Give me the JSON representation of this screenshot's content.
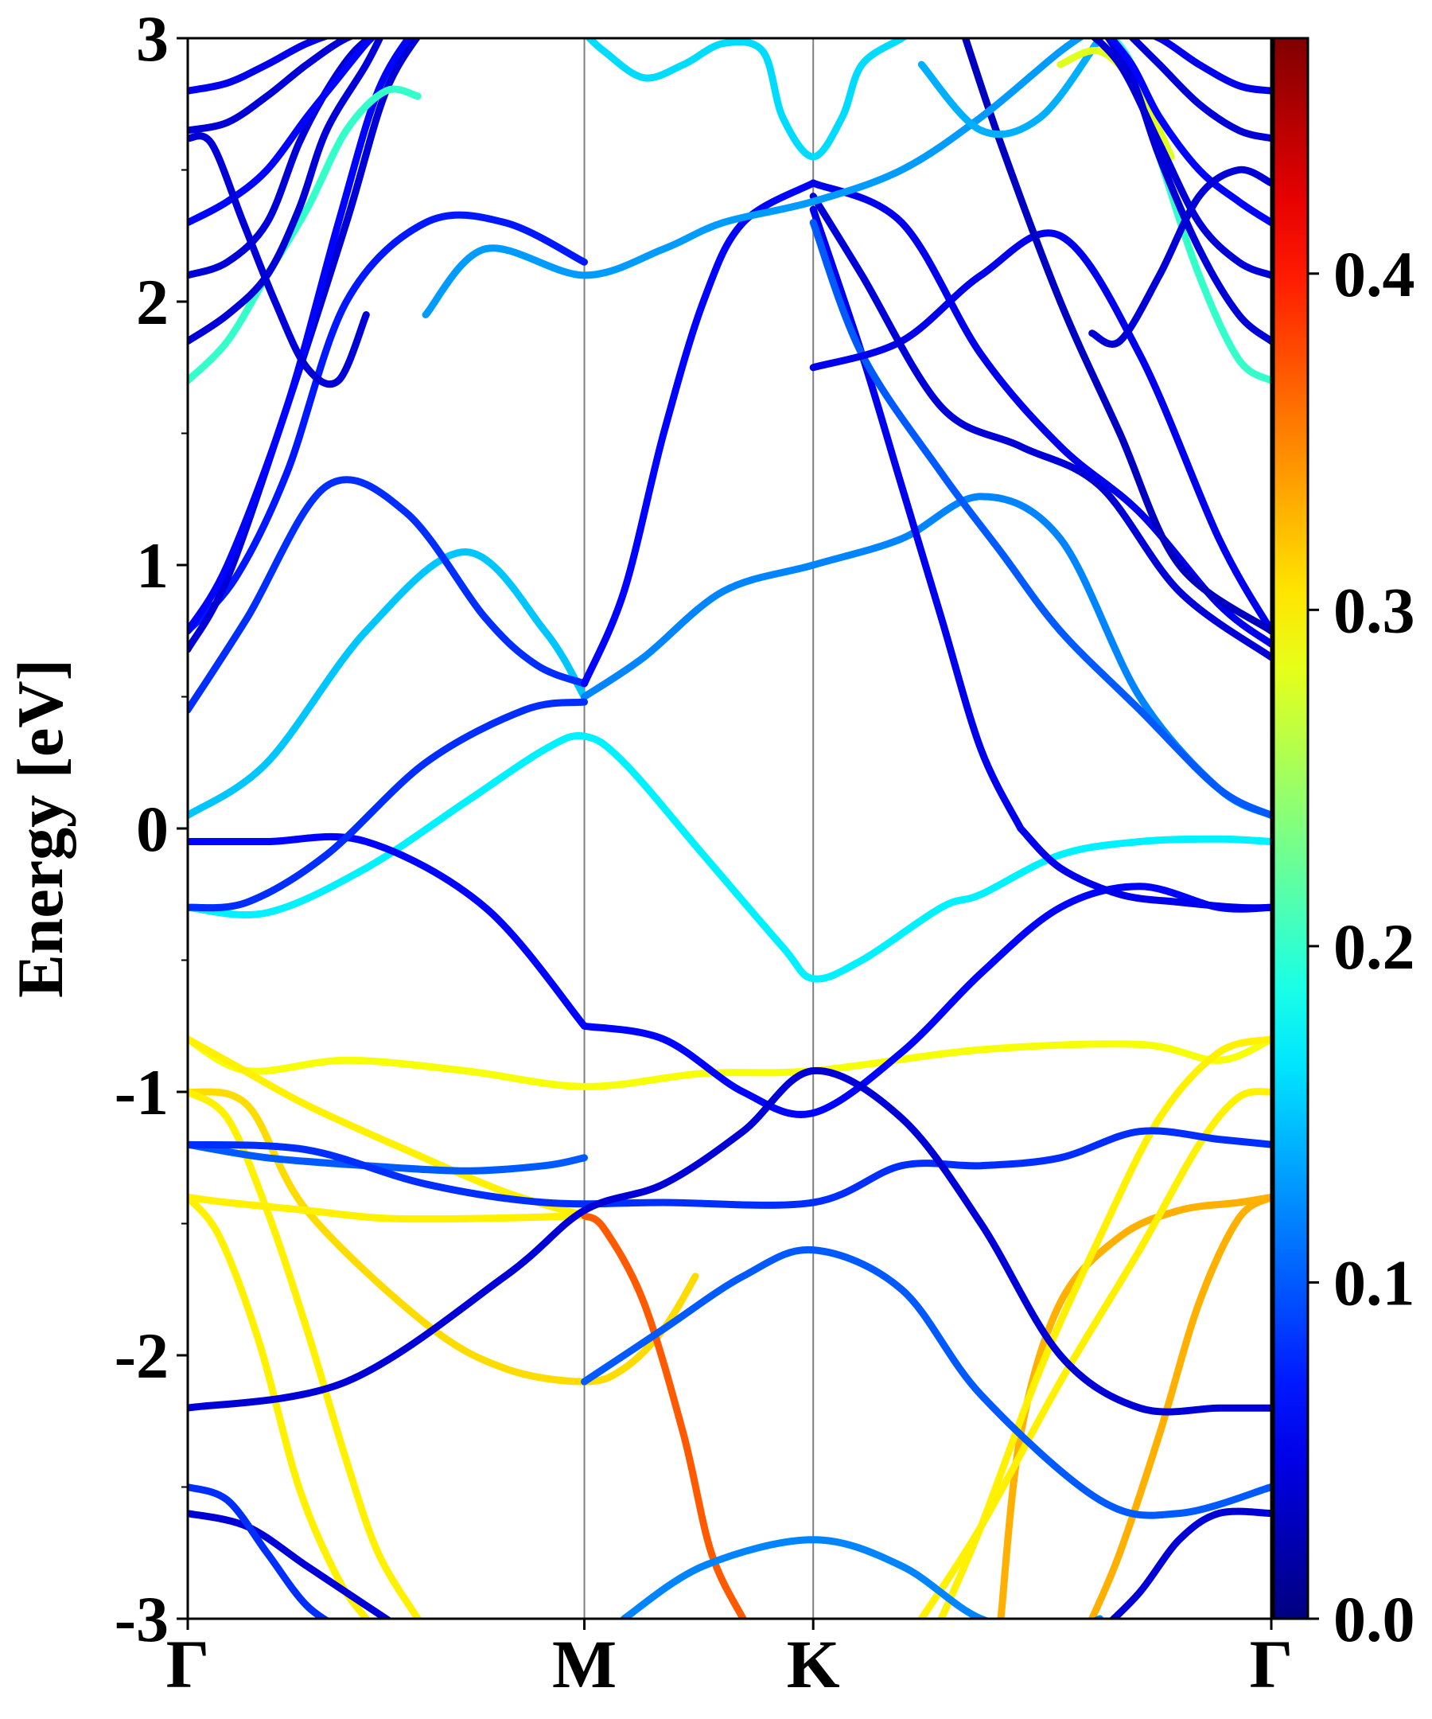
{
  "chart_data": {
    "type": "line",
    "title": "",
    "xlabel": "",
    "ylabel": "Energy [eV]",
    "ylim": [
      -3,
      3
    ],
    "yticks": [
      -3,
      -2,
      -1,
      0,
      1,
      2,
      3
    ],
    "yticklabels": [
      "-3",
      "-2",
      "-1",
      "0",
      "1",
      "2",
      "3"
    ],
    "x_high_symmetry": [
      {
        "label": "Γ",
        "pos": 0.0
      },
      {
        "label": "M",
        "pos": 1.0
      },
      {
        "label": "K",
        "pos": 1.577
      },
      {
        "label": "Γ",
        "pos": 2.732
      }
    ],
    "xlim": [
      0,
      2.732
    ],
    "grid": false,
    "colormap": "jet",
    "colorbar": {
      "range": [
        0,
        0.47
      ],
      "ticks": [
        0.0,
        0.1,
        0.2,
        0.3,
        0.4
      ],
      "ticklabels": [
        "0.0",
        "0.1",
        "0.2",
        "0.3",
        "0.4"
      ]
    },
    "series": [
      {
        "weight": 0.29,
        "x": [
          0,
          0.15,
          0.4,
          0.7,
          1.0,
          1.3,
          1.577,
          2.0,
          2.4,
          2.6,
          2.732
        ],
        "y": [
          -0.8,
          -0.92,
          -0.88,
          -0.92,
          -0.98,
          -0.93,
          -0.92,
          -0.84,
          -0.82,
          -0.88,
          -0.8
        ]
      },
      {
        "weight": 0.3,
        "x": [
          0,
          0.12,
          0.3,
          0.55,
          0.8,
          1.0
        ],
        "y": [
          -0.8,
          -0.9,
          -1.05,
          -1.22,
          -1.38,
          -1.47
        ]
      },
      {
        "weight": 0.31,
        "x": [
          0,
          0.15,
          0.3,
          0.6,
          0.8,
          1.0,
          1.1,
          1.2,
          1.28
        ],
        "y": [
          -1.0,
          -1.05,
          -1.45,
          -1.88,
          -2.05,
          -2.1,
          -2.05,
          -1.9,
          -1.7
        ]
      },
      {
        "weight": 0.3,
        "x": [
          0,
          0.1,
          0.3,
          0.5,
          0.75,
          1.0
        ],
        "y": [
          -1.4,
          -1.42,
          -1.45,
          -1.48,
          -1.48,
          -1.47
        ]
      },
      {
        "weight": 0.37,
        "x": [
          1.0,
          1.05,
          1.15,
          1.25,
          1.32,
          1.4
        ],
        "y": [
          -1.47,
          -1.52,
          -1.8,
          -2.3,
          -2.75,
          -3.0
        ]
      },
      {
        "weight": 0.3,
        "x": [
          0,
          0.08,
          0.18,
          0.28,
          0.38,
          0.45
        ],
        "y": [
          -1.4,
          -1.55,
          -1.95,
          -2.5,
          -2.85,
          -3.0
        ]
      },
      {
        "weight": 0.3,
        "x": [
          0,
          0.1,
          0.2,
          0.3,
          0.4,
          0.48,
          0.58
        ],
        "y": [
          -1.0,
          -1.1,
          -1.45,
          -1.9,
          -2.4,
          -2.75,
          -3.0
        ]
      },
      {
        "weight": 0.33,
        "x": [
          2.732,
          2.65,
          2.5,
          2.35,
          2.2,
          2.1,
          2.05
        ],
        "y": [
          -1.4,
          -1.42,
          -1.45,
          -1.55,
          -1.8,
          -2.3,
          -3.0
        ]
      },
      {
        "weight": 0.33,
        "x": [
          2.732,
          2.65,
          2.55,
          2.45,
          2.35,
          2.28
        ],
        "y": [
          -1.4,
          -1.48,
          -1.8,
          -2.3,
          -2.75,
          -3.0
        ]
      },
      {
        "weight": 0.3,
        "x": [
          2.732,
          2.65,
          2.55,
          2.4,
          2.2,
          2.0,
          1.85
        ],
        "y": [
          -1.0,
          -1.02,
          -1.2,
          -1.6,
          -2.1,
          -2.65,
          -3.0
        ]
      },
      {
        "weight": 0.3,
        "x": [
          2.732,
          2.6,
          2.45,
          2.3,
          2.15,
          2.0,
          1.9
        ],
        "y": [
          -0.8,
          -0.85,
          -1.1,
          -1.55,
          -2.05,
          -2.65,
          -3.0
        ]
      },
      {
        "weight": 0.15,
        "x": [
          0,
          0.2,
          0.45,
          0.7,
          0.9,
          1.0
        ],
        "y": [
          0.05,
          0.25,
          0.75,
          1.05,
          0.75,
          0.5
        ]
      },
      {
        "weight": 0.12,
        "x": [
          1.0,
          1.15,
          1.35,
          1.577,
          1.8,
          2.0,
          2.2,
          2.4,
          2.6,
          2.732
        ],
        "y": [
          0.5,
          0.65,
          0.9,
          1.0,
          1.1,
          1.26,
          1.1,
          0.5,
          0.15,
          0.05
        ]
      },
      {
        "weight": 0.17,
        "x": [
          0,
          0.2,
          0.45,
          0.7,
          0.9,
          1.0,
          1.1,
          1.3,
          1.5,
          1.577,
          1.7,
          1.9,
          2.0,
          2.2,
          2.4,
          2.6,
          2.732
        ],
        "y": [
          -0.3,
          -0.32,
          -0.15,
          0.1,
          0.3,
          0.35,
          0.25,
          -0.1,
          -0.45,
          -0.57,
          -0.5,
          -0.3,
          -0.25,
          -0.1,
          -0.05,
          -0.04,
          -0.05
        ]
      },
      {
        "weight": 0.06,
        "x": [
          0,
          0.2,
          0.45,
          0.75,
          1.0
        ],
        "y": [
          -0.05,
          -0.05,
          -0.05,
          -0.3,
          -0.75
        ]
      },
      {
        "weight": 0.06,
        "x": [
          1.0,
          1.2,
          1.4,
          1.577,
          1.8,
          2.0,
          2.2,
          2.4,
          2.6,
          2.732
        ],
        "y": [
          -0.75,
          -0.8,
          -1.0,
          -1.08,
          -0.85,
          -0.55,
          -0.3,
          -0.22,
          -0.3,
          -0.3
        ]
      },
      {
        "weight": 0.08,
        "x": [
          0,
          0.15,
          0.35,
          0.6,
          0.85,
          1.0
        ],
        "y": [
          -0.3,
          -0.28,
          -0.1,
          0.25,
          0.45,
          0.48
        ]
      },
      {
        "weight": 0.1,
        "x": [
          0,
          0.2,
          0.45,
          0.7,
          0.9,
          1.0
        ],
        "y": [
          -1.2,
          -1.25,
          -1.28,
          -1.3,
          -1.28,
          -1.25
        ]
      },
      {
        "weight": 0.08,
        "x": [
          0,
          0.3,
          0.6,
          0.9,
          1.2,
          1.577,
          1.8,
          2.0,
          2.2,
          2.4,
          2.6,
          2.732
        ],
        "y": [
          -1.2,
          -1.22,
          -1.35,
          -1.42,
          -1.42,
          -1.42,
          -1.28,
          -1.28,
          -1.25,
          -1.15,
          -1.18,
          -1.2
        ]
      },
      {
        "weight": 0.04,
        "x": [
          0,
          0.4,
          0.8,
          1.0,
          1.2,
          1.4,
          1.577,
          1.8,
          2.0,
          2.2,
          2.4,
          2.6,
          2.732
        ],
        "y": [
          -2.2,
          -2.1,
          -1.7,
          -1.45,
          -1.35,
          -1.15,
          -0.92,
          -1.1,
          -1.5,
          -2.0,
          -2.2,
          -2.2,
          -2.2
        ]
      },
      {
        "weight": 0.1,
        "x": [
          1.0,
          1.2,
          1.4,
          1.577,
          1.8,
          2.0,
          2.3,
          2.5,
          2.732
        ],
        "y": [
          -2.1,
          -1.9,
          -1.7,
          -1.6,
          -1.75,
          -2.15,
          -2.55,
          -2.6,
          -2.5
        ]
      },
      {
        "weight": 0.12,
        "x": [
          1.1,
          1.3,
          1.577,
          1.8,
          2.0,
          2.2,
          2.3
        ],
        "y": [
          -3.0,
          -2.8,
          -2.7,
          -2.8,
          -3.0,
          -3.05,
          -3.0
        ]
      },
      {
        "weight": 0.04,
        "x": [
          0,
          0.15,
          0.3,
          0.45,
          0.55
        ],
        "y": [
          -2.6,
          -2.65,
          -2.8,
          -2.95,
          -3.05
        ]
      },
      {
        "weight": 0.08,
        "x": [
          0,
          0.1,
          0.2,
          0.3,
          0.4
        ],
        "y": [
          -2.5,
          -2.55,
          -2.75,
          -2.95,
          -3.05
        ]
      },
      {
        "weight": 0.04,
        "x": [
          2.732,
          2.6,
          2.5,
          2.4,
          2.3
        ],
        "y": [
          -2.6,
          -2.6,
          -2.7,
          -2.9,
          -3.05
        ]
      },
      {
        "weight": 0.08,
        "x": [
          0,
          0.15,
          0.35,
          0.55,
          0.75,
          0.88,
          1.0
        ],
        "y": [
          0.45,
          0.8,
          1.3,
          1.2,
          0.8,
          0.62,
          0.55
        ]
      },
      {
        "weight": 0.06,
        "x": [
          1.0,
          1.1,
          1.2,
          1.3,
          1.4,
          1.577
        ],
        "y": [
          0.55,
          0.9,
          1.5,
          2.0,
          2.3,
          2.45
        ]
      },
      {
        "weight": 0.07,
        "x": [
          0,
          0.12,
          0.25,
          0.4,
          0.6,
          0.8,
          1.0
        ],
        "y": [
          0.75,
          0.95,
          1.35,
          2.0,
          2.3,
          2.3,
          2.15
        ]
      },
      {
        "weight": 0.05,
        "x": [
          1.577,
          1.7,
          1.8,
          1.9,
          2.0,
          2.1
        ],
        "y": [
          2.35,
          1.8,
          1.3,
          0.8,
          0.3,
          0.0
        ]
      },
      {
        "weight": 0.05,
        "x": [
          2.1,
          2.2,
          2.35,
          2.5,
          2.65,
          2.732
        ],
        "y": [
          0.0,
          -0.15,
          -0.25,
          -0.28,
          -0.3,
          -0.3
        ]
      },
      {
        "weight": 0.1,
        "x": [
          1.577,
          1.7,
          1.9,
          2.05,
          2.2,
          2.4,
          2.6,
          2.732
        ],
        "y": [
          2.3,
          1.8,
          1.35,
          1.05,
          0.75,
          0.45,
          0.15,
          0.05
        ]
      },
      {
        "weight": 0.05,
        "x": [
          1.577,
          1.8,
          2.0,
          2.2,
          2.4,
          2.6,
          2.732
        ],
        "y": [
          1.75,
          1.85,
          2.1,
          2.25,
          1.8,
          1.1,
          0.75
        ]
      },
      {
        "weight": 0.04,
        "x": [
          0,
          0.1,
          0.25,
          0.4,
          0.5,
          0.6
        ],
        "y": [
          0.68,
          0.95,
          1.6,
          2.3,
          2.8,
          3.05
        ]
      },
      {
        "weight": 0.06,
        "x": [
          0,
          0.1,
          0.25,
          0.38,
          0.48,
          0.58
        ],
        "y": [
          0.75,
          1.0,
          1.6,
          2.3,
          2.8,
          3.05
        ]
      },
      {
        "weight": 0.04,
        "x": [
          1.577,
          1.7,
          1.9,
          2.1,
          2.3,
          2.5,
          2.732
        ],
        "y": [
          2.4,
          2.1,
          1.6,
          1.45,
          1.3,
          0.9,
          0.65
        ]
      },
      {
        "weight": 0.05,
        "x": [
          1.577,
          1.8,
          2.0,
          2.2,
          2.4,
          2.6,
          2.732
        ],
        "y": [
          2.45,
          2.3,
          1.8,
          1.45,
          1.2,
          0.85,
          0.7
        ]
      },
      {
        "weight": 0.03,
        "x": [
          1.95,
          2.05,
          2.2,
          2.35,
          2.5,
          2.732
        ],
        "y": [
          3.05,
          2.6,
          2.0,
          1.5,
          1.0,
          0.75
        ]
      },
      {
        "weight": 0.13,
        "x": [
          0.6,
          0.75,
          1.0,
          1.2,
          1.35,
          1.577,
          1.8,
          2.0,
          2.2,
          2.3
        ],
        "y": [
          1.95,
          2.2,
          2.1,
          2.2,
          2.3,
          2.38,
          2.5,
          2.7,
          2.95,
          3.05
        ]
      },
      {
        "weight": 0.16,
        "x": [
          1.0,
          1.05,
          1.15,
          1.25,
          1.35,
          1.45,
          1.5,
          1.577,
          1.65,
          1.7,
          1.8,
          1.85
        ],
        "y": [
          3.02,
          2.95,
          2.85,
          2.9,
          2.98,
          2.95,
          2.7,
          2.55,
          2.7,
          2.9,
          3.0,
          3.05
        ]
      },
      {
        "weight": 0.14,
        "x": [
          1.85,
          2.0,
          2.15,
          2.3
        ],
        "y": [
          2.9,
          2.65,
          2.7,
          3.0
        ]
      },
      {
        "weight": 0.2,
        "x": [
          0,
          0.1,
          0.2,
          0.3,
          0.4,
          0.5,
          0.58
        ],
        "y": [
          1.7,
          1.85,
          2.1,
          2.35,
          2.65,
          2.8,
          2.78
        ]
      },
      {
        "weight": 0.2,
        "x": [
          2.732,
          2.65,
          2.55,
          2.45,
          2.38,
          2.3
        ],
        "y": [
          1.7,
          1.78,
          2.1,
          2.55,
          2.9,
          3.05
        ]
      },
      {
        "weight": 0.28,
        "x": [
          2.2,
          2.3,
          2.4,
          2.48
        ],
        "y": [
          2.9,
          2.95,
          2.8,
          2.55
        ]
      },
      {
        "weight": 0.04,
        "x": [
          0,
          0.1,
          0.2,
          0.28,
          0.35,
          0.42,
          0.5
        ],
        "y": [
          2.1,
          2.15,
          2.3,
          2.6,
          2.8,
          2.95,
          3.05
        ]
      },
      {
        "weight": 0.04,
        "x": [
          0,
          0.1,
          0.2,
          0.28,
          0.35,
          0.45,
          0.5
        ],
        "y": [
          1.85,
          1.95,
          2.1,
          2.35,
          2.65,
          2.9,
          3.05
        ]
      },
      {
        "weight": 0.06,
        "x": [
          0,
          0.1,
          0.2,
          0.3,
          0.38,
          0.45,
          0.5
        ],
        "y": [
          2.3,
          2.38,
          2.5,
          2.7,
          2.85,
          2.98,
          3.05
        ]
      },
      {
        "weight": 0.04,
        "x": [
          0,
          0.1,
          0.2,
          0.3,
          0.4,
          0.5
        ],
        "y": [
          2.65,
          2.68,
          2.78,
          2.9,
          3.0,
          3.05
        ]
      },
      {
        "weight": 0.05,
        "x": [
          0,
          0.1,
          0.2,
          0.3,
          0.4,
          0.5
        ],
        "y": [
          2.8,
          2.83,
          2.9,
          2.98,
          3.03,
          3.05
        ]
      },
      {
        "weight": 0.04,
        "x": [
          0,
          0.06,
          0.14,
          0.22,
          0.3,
          0.38,
          0.45
        ],
        "y": [
          2.62,
          2.6,
          2.3,
          2.0,
          1.75,
          1.7,
          1.95
        ]
      },
      {
        "weight": 0.04,
        "x": [
          2.732,
          2.65,
          2.55,
          2.45,
          2.35,
          2.25
        ],
        "y": [
          2.1,
          2.15,
          2.3,
          2.6,
          2.9,
          3.05
        ]
      },
      {
        "weight": 0.04,
        "x": [
          2.732,
          2.65,
          2.55,
          2.45,
          2.38,
          2.3
        ],
        "y": [
          1.85,
          1.95,
          2.2,
          2.55,
          2.85,
          3.05
        ]
      },
      {
        "weight": 0.06,
        "x": [
          2.732,
          2.65,
          2.55,
          2.45,
          2.38,
          2.3
        ],
        "y": [
          2.3,
          2.38,
          2.5,
          2.7,
          2.9,
          3.05
        ]
      },
      {
        "weight": 0.04,
        "x": [
          2.732,
          2.65,
          2.55,
          2.45,
          2.35
        ],
        "y": [
          2.62,
          2.65,
          2.75,
          2.9,
          3.05
        ]
      },
      {
        "weight": 0.05,
        "x": [
          2.732,
          2.65,
          2.55,
          2.45,
          2.35
        ],
        "y": [
          2.8,
          2.82,
          2.9,
          3.0,
          3.05
        ]
      },
      {
        "weight": 0.04,
        "x": [
          2.732,
          2.65,
          2.55,
          2.45,
          2.35,
          2.28
        ],
        "y": [
          2.45,
          2.5,
          2.4,
          2.1,
          1.85,
          1.88
        ]
      }
    ]
  }
}
